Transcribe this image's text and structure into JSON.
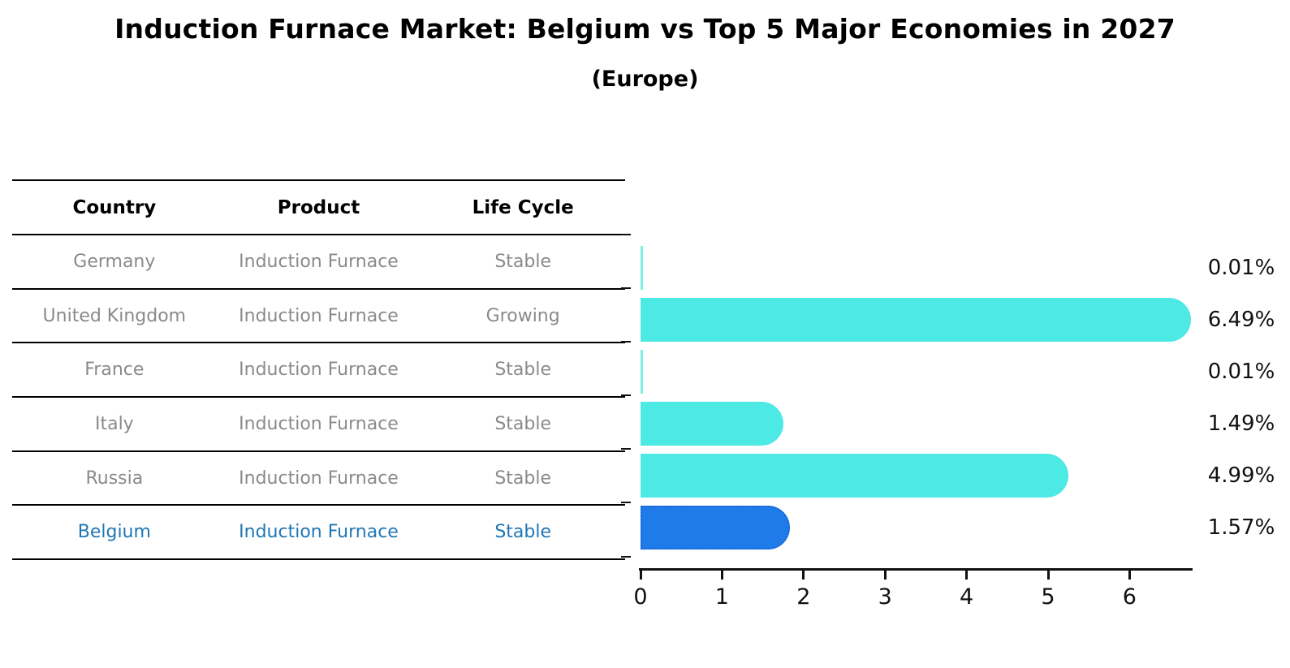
{
  "title": "Induction Furnace Market: Belgium vs Top 5 Major Economies in 2027",
  "subtitle": "(Europe)",
  "table": {
    "headers": [
      "Country",
      "Product",
      "Life Cycle"
    ],
    "rows": [
      {
        "country": "Germany",
        "product": "Induction Furnace",
        "life_cycle": "Stable",
        "highlighted": false
      },
      {
        "country": "United Kingdom",
        "product": "Induction Furnace",
        "life_cycle": "Growing",
        "highlighted": false
      },
      {
        "country": "France",
        "product": "Induction Furnace",
        "life_cycle": "Stable",
        "highlighted": false
      },
      {
        "country": "Italy",
        "product": "Induction Furnace",
        "life_cycle": "Stable",
        "highlighted": false
      },
      {
        "country": "Russia",
        "product": "Induction Furnace",
        "life_cycle": "Stable",
        "highlighted": false
      },
      {
        "country": "Belgium",
        "product": "Induction Furnace",
        "life_cycle": "Stable",
        "highlighted": true
      }
    ]
  },
  "chart_data": {
    "type": "bar",
    "orientation": "horizontal",
    "title": "Induction Furnace Market: Belgium vs Top 5 Major Economies in 2027",
    "subtitle": "(Europe)",
    "categories": [
      "Germany",
      "United Kingdom",
      "France",
      "Italy",
      "Russia",
      "Belgium"
    ],
    "values": [
      0.01,
      6.49,
      0.01,
      1.49,
      4.99,
      1.57
    ],
    "value_labels": [
      "0.01%",
      "6.49%",
      "0.01%",
      "1.49%",
      "4.99%",
      "1.57%"
    ],
    "units": "percent",
    "x_ticks": [
      "0",
      "1",
      "2",
      "3",
      "4",
      "5",
      "6"
    ],
    "xlim": [
      0,
      6.77
    ],
    "grid": false,
    "legend": "none",
    "highlight_index": 5,
    "bar_color": "#4DE9E5",
    "tiny_bar_color": "#7FEEE9",
    "highlight_bar_color": "#1E7BE8",
    "highlight_bar_border": "#1668D8"
  },
  "colors": {
    "background": "#FFFFFF",
    "title_text": "#000000",
    "table_header_text": "#000000",
    "table_text": "#8A8A8A",
    "highlight_text": "#1F77B4",
    "axis": "#111111",
    "value_label_text": "#111111"
  }
}
